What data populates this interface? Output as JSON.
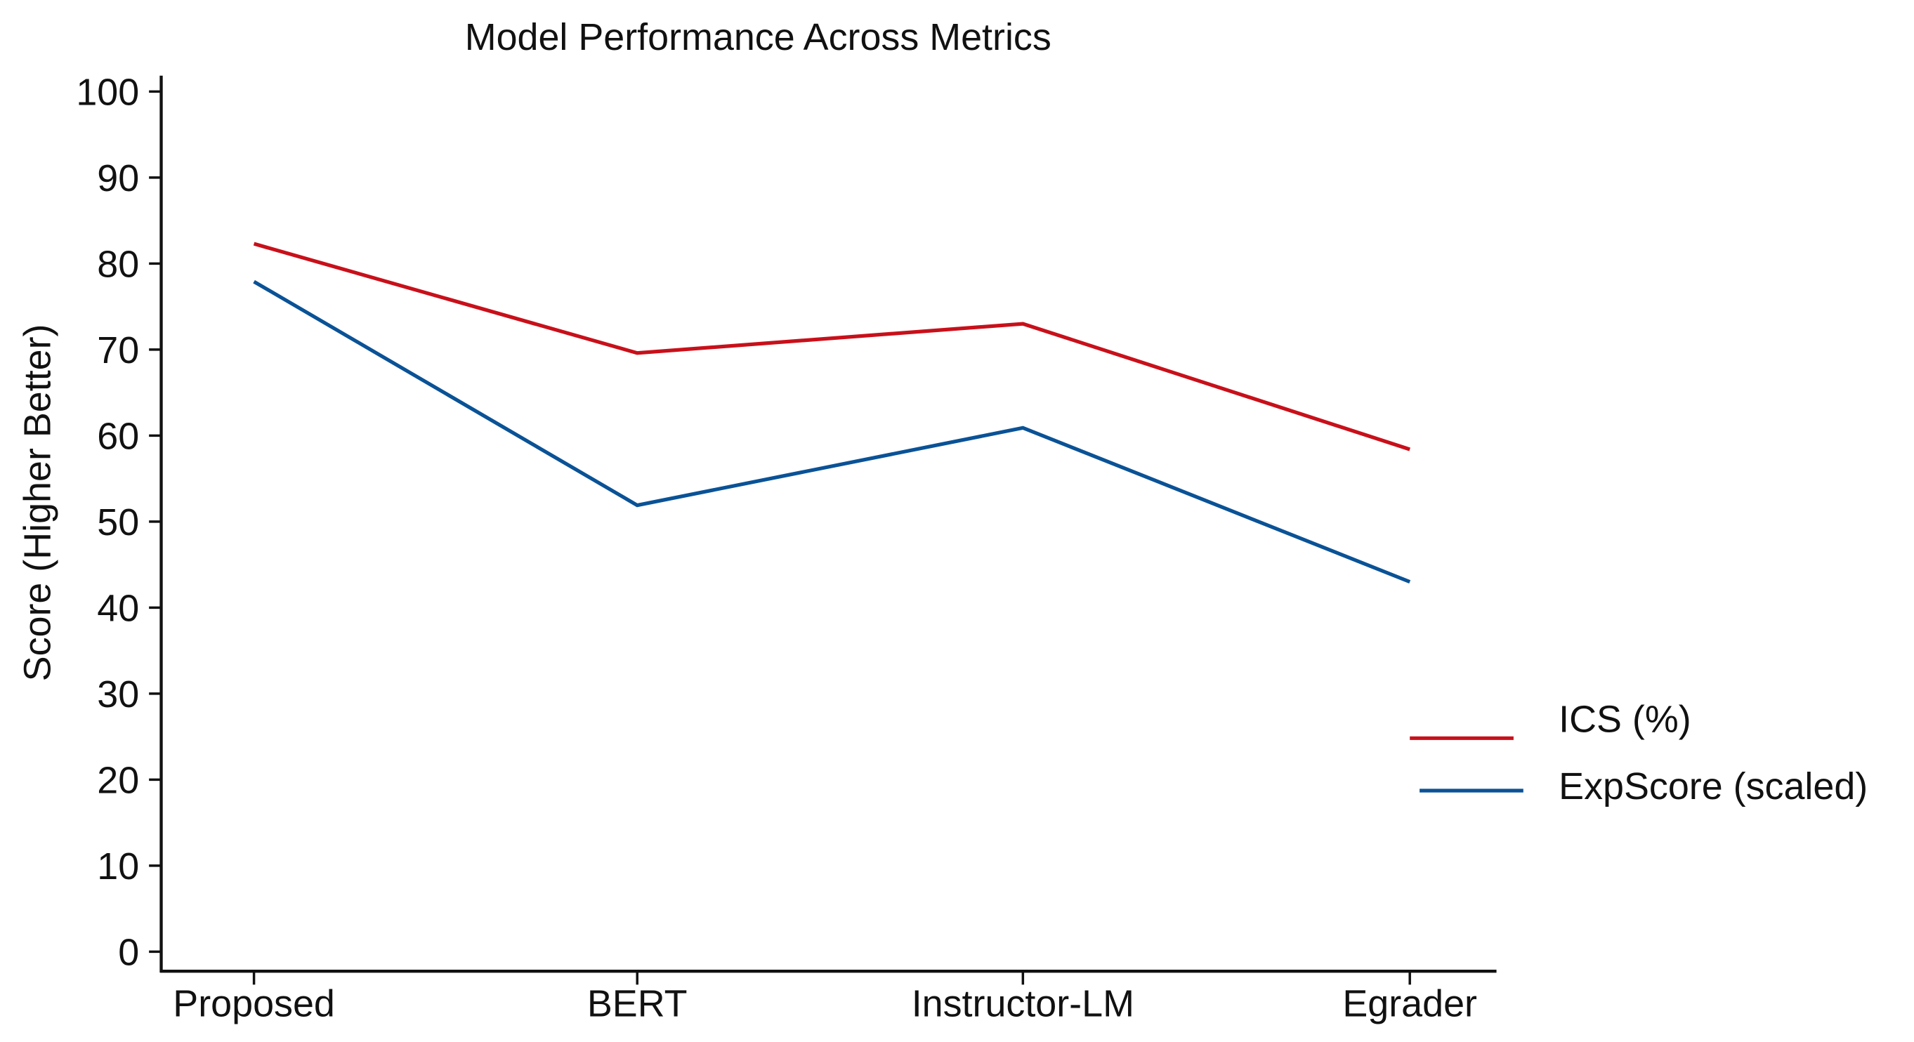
{
  "chart_data": {
    "type": "line",
    "title": "Model Performance Across Metrics",
    "xlabel": "",
    "ylabel": "Score (Higher Better)",
    "categories": [
      "Proposed",
      "BERT",
      "Instructor-LM",
      "Egrader"
    ],
    "ylim": [
      0,
      100
    ],
    "yticks": [
      0,
      10,
      20,
      30,
      40,
      50,
      60,
      70,
      80,
      90,
      100
    ],
    "grid": false,
    "legend_position": "right",
    "series": [
      {
        "name": "ICS (%)",
        "color": "#c8101a",
        "values": [
          82.3,
          69.6,
          73.0,
          58.4
        ]
      },
      {
        "name": "ExpScore (scaled)",
        "color": "#0a5296",
        "values": [
          77.9,
          51.9,
          60.9,
          43.0
        ]
      }
    ]
  }
}
